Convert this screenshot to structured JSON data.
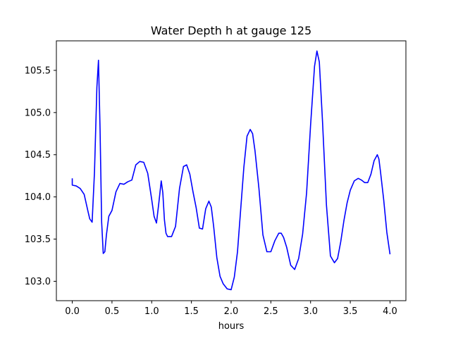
{
  "chart_data": {
    "type": "line",
    "title": "Water Depth h at gauge 125",
    "xlabel": "hours",
    "ylabel": "",
    "xlim": [
      -0.2,
      4.2
    ],
    "ylim": [
      102.77,
      105.85
    ],
    "xticks": [
      0.0,
      0.5,
      1.0,
      1.5,
      2.0,
      2.5,
      3.0,
      3.5,
      4.0
    ],
    "xtick_labels": [
      "0.0",
      "0.5",
      "1.0",
      "1.5",
      "2.0",
      "2.5",
      "3.0",
      "3.5",
      "4.0"
    ],
    "yticks": [
      103.0,
      103.5,
      104.0,
      104.5,
      105.0,
      105.5
    ],
    "ytick_labels": [
      "103.0",
      "103.5",
      "104.0",
      "104.5",
      "105.0",
      "105.5"
    ],
    "grid": false,
    "legend": "none",
    "series": [
      {
        "color": "#0000ff",
        "x": [
          0.0,
          0.0,
          0.05,
          0.1,
          0.15,
          0.2,
          0.22,
          0.25,
          0.28,
          0.31,
          0.33,
          0.35,
          0.37,
          0.39,
          0.41,
          0.43,
          0.46,
          0.5,
          0.55,
          0.6,
          0.65,
          0.7,
          0.75,
          0.8,
          0.85,
          0.9,
          0.95,
          1.0,
          1.03,
          1.06,
          1.09,
          1.12,
          1.14,
          1.16,
          1.18,
          1.2,
          1.25,
          1.3,
          1.35,
          1.4,
          1.44,
          1.48,
          1.52,
          1.56,
          1.6,
          1.64,
          1.68,
          1.72,
          1.75,
          1.78,
          1.82,
          1.86,
          1.9,
          1.95,
          2.0,
          2.04,
          2.08,
          2.12,
          2.16,
          2.2,
          2.24,
          2.27,
          2.3,
          2.35,
          2.4,
          2.45,
          2.5,
          2.55,
          2.6,
          2.63,
          2.66,
          2.7,
          2.75,
          2.8,
          2.85,
          2.9,
          2.95,
          3.0,
          3.05,
          3.08,
          3.11,
          3.15,
          3.2,
          3.25,
          3.3,
          3.34,
          3.38,
          3.42,
          3.46,
          3.5,
          3.55,
          3.6,
          3.64,
          3.68,
          3.72,
          3.76,
          3.8,
          3.84,
          3.86,
          3.88,
          3.92,
          3.96,
          4.0
        ],
        "y": [
          104.22,
          104.14,
          104.13,
          104.1,
          104.03,
          103.82,
          103.74,
          103.7,
          104.3,
          105.3,
          105.62,
          104.8,
          103.7,
          103.33,
          103.35,
          103.55,
          103.77,
          103.84,
          104.06,
          104.16,
          104.15,
          104.18,
          104.2,
          104.38,
          104.42,
          104.41,
          104.28,
          103.97,
          103.77,
          103.69,
          103.93,
          104.19,
          104.05,
          103.73,
          103.57,
          103.53,
          103.53,
          103.65,
          104.1,
          104.36,
          104.38,
          104.27,
          104.06,
          103.87,
          103.63,
          103.62,
          103.86,
          103.95,
          103.88,
          103.65,
          103.28,
          103.06,
          102.97,
          102.91,
          102.9,
          103.05,
          103.35,
          103.85,
          104.35,
          104.72,
          104.8,
          104.75,
          104.55,
          104.1,
          103.55,
          103.35,
          103.35,
          103.48,
          103.57,
          103.57,
          103.52,
          103.4,
          103.19,
          103.14,
          103.27,
          103.56,
          104.05,
          104.85,
          105.55,
          105.73,
          105.6,
          104.9,
          103.9,
          103.3,
          103.22,
          103.27,
          103.47,
          103.72,
          103.93,
          104.08,
          104.19,
          104.22,
          104.2,
          104.17,
          104.17,
          104.27,
          104.43,
          104.5,
          104.45,
          104.3,
          103.97,
          103.58,
          103.32
        ]
      }
    ]
  }
}
